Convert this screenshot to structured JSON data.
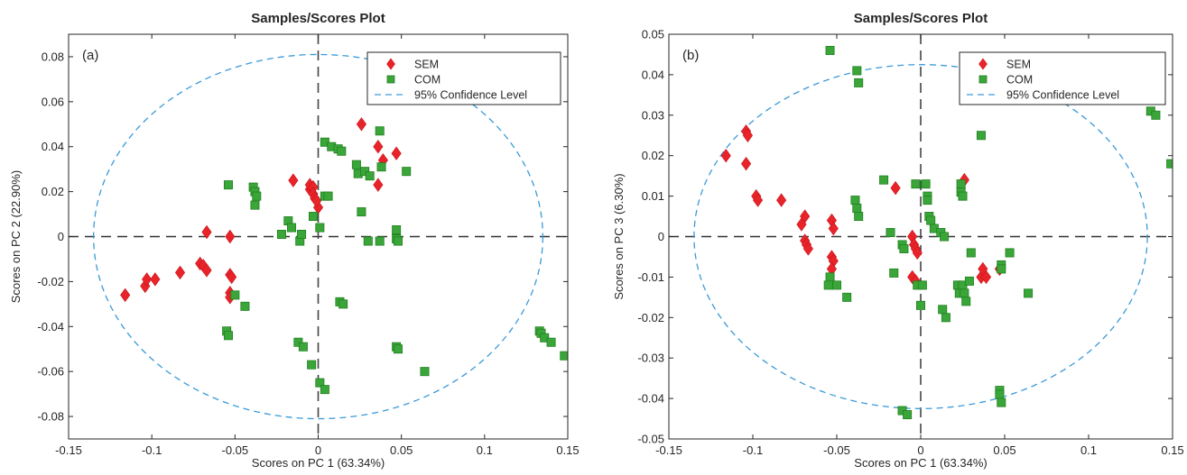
{
  "chart_data": [
    {
      "type": "scatter",
      "panel_label": "(a)",
      "title": "Samples/Scores Plot",
      "xlabel": "Scores on PC 1 (63.34%)",
      "ylabel": "Scores on PC 2 (22.90%)",
      "xlim": [
        -0.15,
        0.15
      ],
      "ylim": [
        -0.09,
        0.09
      ],
      "xticks": [
        "-0.15",
        "-0.1",
        "-0.05",
        "0",
        "0.05",
        "0.1",
        "0.15"
      ],
      "yticks": [
        "-0.08",
        "-0.06",
        "-0.04",
        "-0.02",
        "0",
        "0.02",
        "0.04",
        "0.06",
        "0.08"
      ],
      "grid": false,
      "legend_position": "top-right",
      "legend": [
        "SEM",
        "COM",
        "95% Confidence Level"
      ],
      "ellipse": {
        "rx": 0.135,
        "ry": 0.081
      },
      "colors": {
        "SEM": "#e8242a",
        "COM": "#3aa63a",
        "ellipse": "#3a9ad9"
      },
      "series": [
        {
          "name": "SEM",
          "points": [
            [
              -0.116,
              -0.026
            ],
            [
              -0.104,
              -0.022
            ],
            [
              -0.103,
              -0.019
            ],
            [
              -0.098,
              -0.019
            ],
            [
              -0.083,
              -0.016
            ],
            [
              -0.071,
              -0.012
            ],
            [
              -0.069,
              -0.013
            ],
            [
              -0.067,
              -0.015
            ],
            [
              -0.067,
              0.002
            ],
            [
              -0.053,
              0.0
            ],
            [
              -0.053,
              -0.017
            ],
            [
              -0.052,
              -0.018
            ],
            [
              -0.053,
              -0.025
            ],
            [
              -0.053,
              -0.027
            ],
            [
              -0.015,
              0.025
            ],
            [
              -0.005,
              0.021
            ],
            [
              -0.005,
              0.023
            ],
            [
              -0.003,
              0.022
            ],
            [
              -0.003,
              0.019
            ],
            [
              -0.002,
              0.017
            ],
            [
              0.0,
              0.013
            ],
            [
              -0.001,
              0.016
            ],
            [
              0.026,
              0.05
            ],
            [
              0.036,
              0.04
            ],
            [
              0.039,
              0.034
            ],
            [
              0.047,
              0.037
            ],
            [
              0.036,
              0.023
            ]
          ]
        },
        {
          "name": "COM",
          "points": [
            [
              -0.054,
              0.023
            ],
            [
              -0.05,
              -0.026
            ],
            [
              -0.044,
              -0.031
            ],
            [
              -0.055,
              -0.042
            ],
            [
              -0.054,
              -0.044
            ],
            [
              -0.039,
              0.022
            ],
            [
              -0.038,
              0.02
            ],
            [
              -0.037,
              0.018
            ],
            [
              -0.038,
              0.014
            ],
            [
              -0.022,
              0.001
            ],
            [
              -0.018,
              0.007
            ],
            [
              -0.016,
              0.004
            ],
            [
              -0.011,
              -0.002
            ],
            [
              -0.01,
              0.001
            ],
            [
              -0.003,
              0.009
            ],
            [
              0.001,
              0.004
            ],
            [
              0.004,
              0.042
            ],
            [
              0.008,
              0.04
            ],
            [
              0.012,
              0.039
            ],
            [
              0.014,
              0.038
            ],
            [
              0.004,
              0.018
            ],
            [
              0.006,
              0.018
            ],
            [
              0.023,
              0.032
            ],
            [
              0.024,
              0.028
            ],
            [
              0.028,
              0.029
            ],
            [
              0.031,
              0.027
            ],
            [
              0.037,
              0.047
            ],
            [
              0.038,
              0.031
            ],
            [
              0.053,
              0.029
            ],
            [
              0.026,
              0.011
            ],
            [
              0.03,
              -0.002
            ],
            [
              0.037,
              -0.002
            ],
            [
              0.047,
              0.003
            ],
            [
              0.047,
              -0.001
            ],
            [
              0.048,
              -0.002
            ],
            [
              0.013,
              -0.029
            ],
            [
              0.015,
              -0.03
            ],
            [
              -0.012,
              -0.047
            ],
            [
              -0.009,
              -0.049
            ],
            [
              -0.004,
              -0.057
            ],
            [
              0.001,
              -0.065
            ],
            [
              0.004,
              -0.068
            ],
            [
              0.047,
              -0.049
            ],
            [
              0.048,
              -0.05
            ],
            [
              0.064,
              -0.06
            ],
            [
              0.133,
              -0.042
            ],
            [
              0.134,
              -0.043
            ],
            [
              0.136,
              -0.045
            ],
            [
              0.14,
              -0.047
            ],
            [
              0.148,
              -0.053
            ]
          ]
        }
      ]
    },
    {
      "type": "scatter",
      "panel_label": "(b)",
      "title": "Samples/Scores Plot",
      "xlabel": "Scores on PC 1 (63.34%)",
      "ylabel": "Scores on PC 3 (6.30%)",
      "xlim": [
        -0.15,
        0.15
      ],
      "ylim": [
        -0.05,
        0.05
      ],
      "xticks": [
        "-0.15",
        "-0.1",
        "-0.05",
        "0",
        "0.05",
        "0.1",
        "0.15"
      ],
      "yticks": [
        "-0.05",
        "-0.04",
        "-0.03",
        "-0.02",
        "-0.01",
        "0",
        "0.01",
        "0.02",
        "0.03",
        "0.04",
        "0.05"
      ],
      "grid": false,
      "legend_position": "top-right",
      "legend": [
        "SEM",
        "COM",
        "95% Confidence Level"
      ],
      "ellipse": {
        "rx": 0.135,
        "ry": 0.0425
      },
      "colors": {
        "SEM": "#e8242a",
        "COM": "#3aa63a",
        "ellipse": "#3a9ad9"
      },
      "series": [
        {
          "name": "SEM",
          "points": [
            [
              -0.116,
              0.02
            ],
            [
              -0.104,
              0.026
            ],
            [
              -0.103,
              0.025
            ],
            [
              -0.104,
              0.018
            ],
            [
              -0.098,
              0.01
            ],
            [
              -0.097,
              0.009
            ],
            [
              -0.083,
              0.009
            ],
            [
              -0.071,
              0.003
            ],
            [
              -0.069,
              0.005
            ],
            [
              -0.069,
              -0.001
            ],
            [
              -0.068,
              -0.002
            ],
            [
              -0.067,
              -0.003
            ],
            [
              -0.053,
              0.004
            ],
            [
              -0.052,
              0.002
            ],
            [
              -0.053,
              -0.005
            ],
            [
              -0.052,
              -0.006
            ],
            [
              -0.053,
              -0.008
            ],
            [
              -0.015,
              0.012
            ],
            [
              -0.005,
              0.0
            ],
            [
              -0.004,
              -0.002
            ],
            [
              -0.003,
              -0.003
            ],
            [
              -0.002,
              -0.004
            ],
            [
              -0.005,
              -0.01
            ],
            [
              -0.003,
              -0.011
            ],
            [
              0.026,
              0.014
            ],
            [
              0.036,
              -0.01
            ],
            [
              0.037,
              -0.008
            ],
            [
              0.039,
              -0.01
            ],
            [
              0.047,
              -0.008
            ]
          ]
        },
        {
          "name": "COM",
          "points": [
            [
              -0.054,
              0.046
            ],
            [
              -0.038,
              0.041
            ],
            [
              -0.037,
              0.038
            ],
            [
              -0.054,
              -0.01
            ],
            [
              -0.055,
              -0.012
            ],
            [
              -0.05,
              -0.012
            ],
            [
              -0.044,
              -0.015
            ],
            [
              -0.039,
              0.009
            ],
            [
              -0.038,
              0.007
            ],
            [
              -0.037,
              0.005
            ],
            [
              -0.022,
              0.014
            ],
            [
              -0.018,
              0.001
            ],
            [
              -0.016,
              -0.009
            ],
            [
              -0.011,
              -0.002
            ],
            [
              -0.01,
              -0.003
            ],
            [
              -0.003,
              0.013
            ],
            [
              0.003,
              0.013
            ],
            [
              0.004,
              0.01
            ],
            [
              0.004,
              0.009
            ],
            [
              0.005,
              0.005
            ],
            [
              0.006,
              0.004
            ],
            [
              0.008,
              0.002
            ],
            [
              0.012,
              0.001
            ],
            [
              0.014,
              0.0
            ],
            [
              -0.002,
              -0.012
            ],
            [
              0.001,
              -0.012
            ],
            [
              0.0,
              -0.017
            ],
            [
              0.013,
              -0.018
            ],
            [
              0.015,
              -0.02
            ],
            [
              0.024,
              0.013
            ],
            [
              0.024,
              0.011
            ],
            [
              0.025,
              0.01
            ],
            [
              0.022,
              -0.012
            ],
            [
              0.023,
              -0.014
            ],
            [
              0.025,
              -0.012
            ],
            [
              0.026,
              -0.014
            ],
            [
              0.027,
              -0.016
            ],
            [
              0.029,
              -0.011
            ],
            [
              0.03,
              -0.004
            ],
            [
              0.036,
              0.025
            ],
            [
              0.048,
              -0.007
            ],
            [
              0.048,
              -0.008
            ],
            [
              0.053,
              -0.004
            ],
            [
              0.064,
              -0.014
            ],
            [
              0.047,
              -0.038
            ],
            [
              0.047,
              -0.039
            ],
            [
              0.048,
              -0.041
            ],
            [
              -0.011,
              -0.043
            ],
            [
              -0.008,
              -0.044
            ],
            [
              0.137,
              0.031
            ],
            [
              0.14,
              0.03
            ],
            [
              0.149,
              0.018
            ]
          ]
        }
      ]
    }
  ]
}
